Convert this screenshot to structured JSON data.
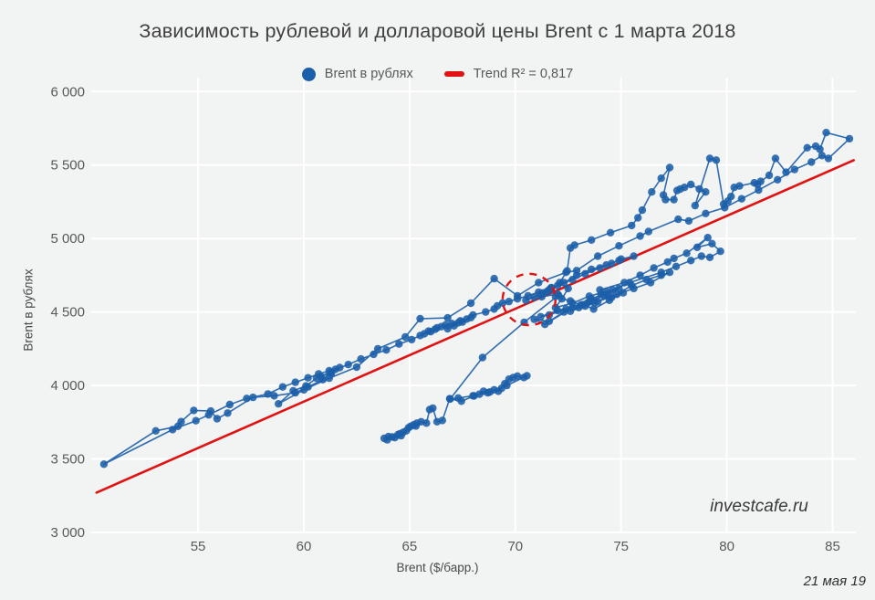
{
  "title": "Зависимость рублевой и долларовой цены Brent с 1 марта 2018",
  "legend": {
    "series_label": "Brent в рублях",
    "trend_label": "Trend R² = 0,817"
  },
  "watermark": "investcafe.ru",
  "date_note": "21 мая 19",
  "colors": {
    "point": "#1b5ea9",
    "line": "#1b5ea9",
    "trend": "#e01212",
    "grid": "#ffffff",
    "tick_text": "#595959",
    "title_text": "#3f3f3f",
    "background": "#f2f3f3"
  },
  "chart_data": {
    "type": "scatter",
    "title": "Зависимость рублевой и долларовой цены Brent с 1 марта 2018",
    "xlabel": "Brent ($/барр.)",
    "ylabel": "Brent в рублях",
    "xlim": [
      49.95,
      86.1
    ],
    "ylim": [
      3000,
      6095
    ],
    "grid": true,
    "legend_position": "top",
    "x_ticks": [
      55,
      60,
      65,
      70,
      75,
      80,
      85
    ],
    "y_ticks": [
      {
        "v": 3000,
        "label": "3 000"
      },
      {
        "v": 3500,
        "label": "3 500"
      },
      {
        "v": 4000,
        "label": "4 000"
      },
      {
        "v": 4500,
        "label": "4 500"
      },
      {
        "v": 5000,
        "label": "5 000"
      },
      {
        "v": 5500,
        "label": "5 500"
      },
      {
        "v": 6000,
        "label": "6 000"
      }
    ],
    "trend": {
      "label": "Trend R² = 0,817",
      "r2": "0,817",
      "x1": 50.2,
      "y1": 3271,
      "x2": 86.0,
      "y2": 5533
    },
    "annotation_circle": {
      "cx": 70.65,
      "cy": 4585,
      "rx": 1.25,
      "ry": 175
    },
    "series": [
      {
        "name": "Brent в рублях",
        "connected": true,
        "points": [
          [
            63.8,
            3640
          ],
          [
            64.0,
            3652
          ],
          [
            64.18,
            3650
          ],
          [
            63.95,
            3630
          ],
          [
            64.3,
            3645
          ],
          [
            64.45,
            3665
          ],
          [
            64.55,
            3672
          ],
          [
            64.7,
            3682
          ],
          [
            64.6,
            3658
          ],
          [
            64.85,
            3692
          ],
          [
            64.95,
            3712
          ],
          [
            65.05,
            3722
          ],
          [
            65.2,
            3733
          ],
          [
            65.35,
            3744
          ],
          [
            65.3,
            3724
          ],
          [
            65.55,
            3753
          ],
          [
            65.8,
            3744
          ],
          [
            65.95,
            3836
          ],
          [
            66.1,
            3846
          ],
          [
            66.3,
            3753
          ],
          [
            66.55,
            3762
          ],
          [
            66.9,
            3910
          ],
          [
            67.45,
            3893
          ],
          [
            68.05,
            3929
          ],
          [
            68.3,
            3940
          ],
          [
            68.5,
            3961
          ],
          [
            68.7,
            3950
          ],
          [
            69.0,
            3971
          ],
          [
            69.2,
            3961
          ],
          [
            69.35,
            3981
          ],
          [
            69.5,
            4012
          ],
          [
            69.7,
            4043
          ],
          [
            69.9,
            4054
          ],
          [
            70.1,
            4064
          ],
          [
            70.4,
            4054
          ],
          [
            70.55,
            4066
          ],
          [
            69.6,
            4000
          ],
          [
            68.8,
            3956
          ],
          [
            68.0,
            3930
          ],
          [
            67.3,
            3915
          ],
          [
            66.92,
            3908
          ],
          [
            68.45,
            4190
          ],
          [
            70.42,
            4430
          ],
          [
            72.05,
            4614
          ],
          [
            71.9,
            4605
          ],
          [
            72.6,
            4575
          ],
          [
            73.1,
            4548
          ],
          [
            72.4,
            4520
          ],
          [
            71.6,
            4480
          ],
          [
            71.2,
            4468
          ],
          [
            72.0,
            4510
          ],
          [
            73.4,
            4560
          ],
          [
            74.05,
            4620
          ],
          [
            73.75,
            4561
          ],
          [
            74.4,
            4608
          ],
          [
            74.0,
            4650
          ],
          [
            75.15,
            4700
          ],
          [
            75.9,
            4750
          ],
          [
            76.55,
            4800
          ],
          [
            77.2,
            4840
          ],
          [
            77.5,
            4865
          ],
          [
            78.1,
            4900
          ],
          [
            79.1,
            5006
          ],
          [
            78.6,
            4940
          ],
          [
            79.3,
            4965
          ],
          [
            79.7,
            4913
          ],
          [
            79.2,
            4872
          ],
          [
            78.8,
            4880
          ],
          [
            78.3,
            4850
          ],
          [
            77.6,
            4810
          ],
          [
            76.9,
            4770
          ],
          [
            75.4,
            4700
          ],
          [
            74.6,
            4650
          ],
          [
            73.6,
            4590
          ],
          [
            72.7,
            4530
          ],
          [
            71.4,
            4416
          ],
          [
            70.9,
            4450
          ],
          [
            71.6,
            4437
          ],
          [
            72.3,
            4500
          ],
          [
            73.2,
            4550
          ],
          [
            73.7,
            4520
          ],
          [
            74.45,
            4580
          ],
          [
            75.1,
            4630
          ],
          [
            74.55,
            4600
          ],
          [
            75.5,
            4680
          ],
          [
            76.2,
            4720
          ],
          [
            76.9,
            4750
          ],
          [
            77.3,
            4770
          ],
          [
            76.4,
            4700
          ],
          [
            75.6,
            4660
          ],
          [
            74.8,
            4620
          ],
          [
            73.9,
            4570
          ],
          [
            73.3,
            4540
          ],
          [
            72.6,
            4505
          ],
          [
            73.0,
            4530
          ],
          [
            73.5,
            4570
          ],
          [
            74.2,
            4610
          ],
          [
            74.9,
            4660
          ],
          [
            74.3,
            4640
          ],
          [
            73.5,
            4608
          ],
          [
            72.7,
            4560
          ],
          [
            71.9,
            4530
          ],
          [
            72.2,
            4590
          ],
          [
            72.5,
            4660
          ],
          [
            72.1,
            4700
          ],
          [
            72.45,
            4780
          ],
          [
            72.6,
            4935
          ],
          [
            72.8,
            4955
          ],
          [
            73.6,
            4990
          ],
          [
            74.5,
            5040
          ],
          [
            75.5,
            5089
          ],
          [
            75.8,
            5141
          ],
          [
            76.0,
            5193
          ],
          [
            76.45,
            5317
          ],
          [
            76.9,
            5410
          ],
          [
            77.3,
            5483
          ],
          [
            77.0,
            5296
          ],
          [
            77.1,
            5265
          ],
          [
            77.5,
            5265
          ],
          [
            77.65,
            5327
          ],
          [
            77.8,
            5337
          ],
          [
            78.0,
            5348
          ],
          [
            78.3,
            5368
          ],
          [
            78.7,
            5337
          ],
          [
            79.0,
            5317
          ],
          [
            78.5,
            5224
          ],
          [
            79.2,
            5545
          ],
          [
            79.5,
            5534
          ],
          [
            79.85,
            5234
          ],
          [
            80.05,
            5255
          ],
          [
            80.2,
            5286
          ],
          [
            80.35,
            5348
          ],
          [
            80.6,
            5358
          ],
          [
            81.3,
            5379
          ],
          [
            81.45,
            5368
          ],
          [
            81.6,
            5389
          ],
          [
            82.0,
            5430
          ],
          [
            82.3,
            5545
          ],
          [
            82.8,
            5451
          ],
          [
            83.8,
            5618
          ],
          [
            84.2,
            5628
          ],
          [
            84.4,
            5607
          ],
          [
            84.7,
            5721
          ],
          [
            85.8,
            5679
          ],
          [
            84.8,
            5545
          ],
          [
            84.5,
            5565
          ],
          [
            84.0,
            5520
          ],
          [
            83.2,
            5470
          ],
          [
            82.4,
            5400
          ],
          [
            81.5,
            5330
          ],
          [
            80.7,
            5270
          ],
          [
            79.9,
            5210
          ],
          [
            79.0,
            5170
          ],
          [
            78.2,
            5120
          ],
          [
            77.7,
            5131
          ],
          [
            76.3,
            5048
          ],
          [
            75.9,
            5017
          ],
          [
            74.9,
            4950
          ],
          [
            73.9,
            4880
          ],
          [
            72.9,
            4782
          ],
          [
            72.4,
            4770
          ],
          [
            71.1,
            4700
          ],
          [
            70.1,
            4610
          ],
          [
            69.0,
            4727
          ],
          [
            67.9,
            4560
          ],
          [
            66.8,
            4460
          ],
          [
            65.5,
            4454
          ],
          [
            64.8,
            4330
          ],
          [
            63.5,
            4250
          ],
          [
            62.5,
            4125
          ],
          [
            61.2,
            4050
          ],
          [
            60.0,
            3970
          ],
          [
            58.8,
            3875
          ],
          [
            59.5,
            3963
          ],
          [
            60.1,
            3997
          ],
          [
            60.6,
            4050
          ],
          [
            61.3,
            4090
          ],
          [
            60.9,
            4040
          ],
          [
            60.2,
            3990
          ],
          [
            59.6,
            3950
          ],
          [
            58.6,
            3930
          ],
          [
            57.6,
            3919
          ],
          [
            56.4,
            3812
          ],
          [
            55.9,
            3774
          ],
          [
            55.6,
            3826
          ],
          [
            54.8,
            3830
          ],
          [
            54.2,
            3754
          ],
          [
            54.05,
            3722
          ],
          [
            53.0,
            3691
          ],
          [
            50.55,
            3464
          ],
          [
            53.8,
            3700
          ],
          [
            54.9,
            3760
          ],
          [
            55.5,
            3800
          ],
          [
            56.5,
            3870
          ],
          [
            57.3,
            3912
          ],
          [
            58.3,
            3942
          ],
          [
            59.0,
            3990
          ],
          [
            59.6,
            4022
          ],
          [
            60.2,
            4052
          ],
          [
            60.7,
            4078
          ],
          [
            61.2,
            4100
          ],
          [
            61.7,
            4122
          ],
          [
            61.3,
            4082
          ],
          [
            60.8,
            4062
          ],
          [
            61.5,
            4110
          ],
          [
            62.1,
            4142
          ],
          [
            62.7,
            4180
          ],
          [
            63.3,
            4212
          ],
          [
            63.9,
            4242
          ],
          [
            64.5,
            4282
          ],
          [
            65.1,
            4312
          ],
          [
            65.5,
            4340
          ],
          [
            65.9,
            4370
          ],
          [
            66.3,
            4392
          ],
          [
            66.7,
            4412
          ],
          [
            66.2,
            4382
          ],
          [
            65.7,
            4352
          ],
          [
            66.0,
            4366
          ],
          [
            66.5,
            4400
          ],
          [
            67.0,
            4422
          ],
          [
            67.4,
            4440
          ],
          [
            67.9,
            4462
          ],
          [
            67.5,
            4432
          ],
          [
            67.1,
            4406
          ],
          [
            66.8,
            4386
          ],
          [
            67.3,
            4426
          ],
          [
            67.7,
            4452
          ],
          [
            68.0,
            4480
          ],
          [
            68.6,
            4500
          ],
          [
            69.0,
            4520
          ],
          [
            69.15,
            4542
          ],
          [
            69.4,
            4561
          ],
          [
            69.7,
            4571
          ],
          [
            70.1,
            4590
          ],
          [
            70.6,
            4610
          ],
          [
            71.1,
            4635
          ],
          [
            71.6,
            4652
          ],
          [
            71.3,
            4630
          ],
          [
            71.7,
            4666
          ],
          [
            72.0,
            4680
          ],
          [
            72.7,
            4720
          ],
          [
            73.3,
            4760
          ],
          [
            74.0,
            4800
          ],
          [
            74.55,
            4830
          ],
          [
            75.0,
            4860
          ],
          [
            75.6,
            4880
          ],
          [
            74.9,
            4850
          ],
          [
            74.3,
            4820
          ],
          [
            73.6,
            4790
          ],
          [
            72.9,
            4750
          ],
          [
            72.3,
            4700
          ],
          [
            71.7,
            4662
          ],
          [
            71.2,
            4620
          ],
          [
            70.5,
            4580
          ],
          [
            70.9,
            4600
          ],
          [
            71.5,
            4640
          ],
          [
            72.0,
            4622
          ],
          [
            71.25,
            4604
          ]
        ]
      }
    ]
  }
}
